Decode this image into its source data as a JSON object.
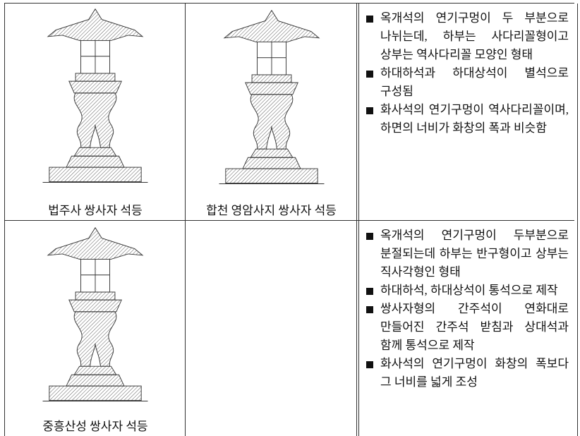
{
  "table": {
    "rows": [
      {
        "images": [
          {
            "caption": "법주사 쌍사자 석등"
          },
          {
            "caption": "합천 영암사지 쌍사자 석등"
          }
        ],
        "notes": [
          "옥개석의 연기구멍이 두 부분으로 나뉘는데, 하부는 사다리꼴형이고 상부는 역사다리꼴 모양인 형태",
          "하대하석과 하대상석이 별석으로 구성됨",
          "화사석의 연기구멍이 역사다리꼴이며, 하면의 너비가 화창의 폭과 비슷함"
        ]
      },
      {
        "images": [
          {
            "caption": "중흥산성 쌍사자 석등"
          }
        ],
        "notes": [
          "옥개석의 연기구멍이 두부분으로 분절되는데 하부는 반구형이고 상부는 직사각형인 형태",
          "하대하석, 하대상석이 통석으로 제작",
          "쌍사자형의 간주석이 연화대로 만들어진 간주석 받침과 상대석과 함께 통석으로 제작",
          "화사석의 연기구멍이 화창의 폭보다 그 너비를 넓게 조성"
        ]
      }
    ]
  }
}
